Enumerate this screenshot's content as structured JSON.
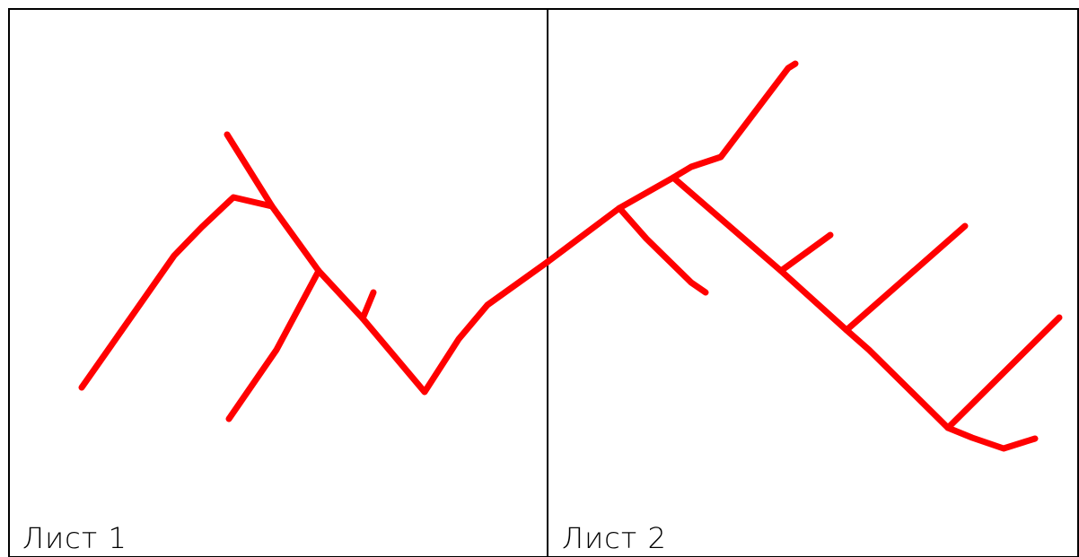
{
  "sheets": [
    {
      "label": "Лист 1"
    },
    {
      "label": "Лист 2"
    }
  ],
  "colors": {
    "background": "#ffffff",
    "frame": "#000000",
    "network_line": "#ff0000"
  }
}
